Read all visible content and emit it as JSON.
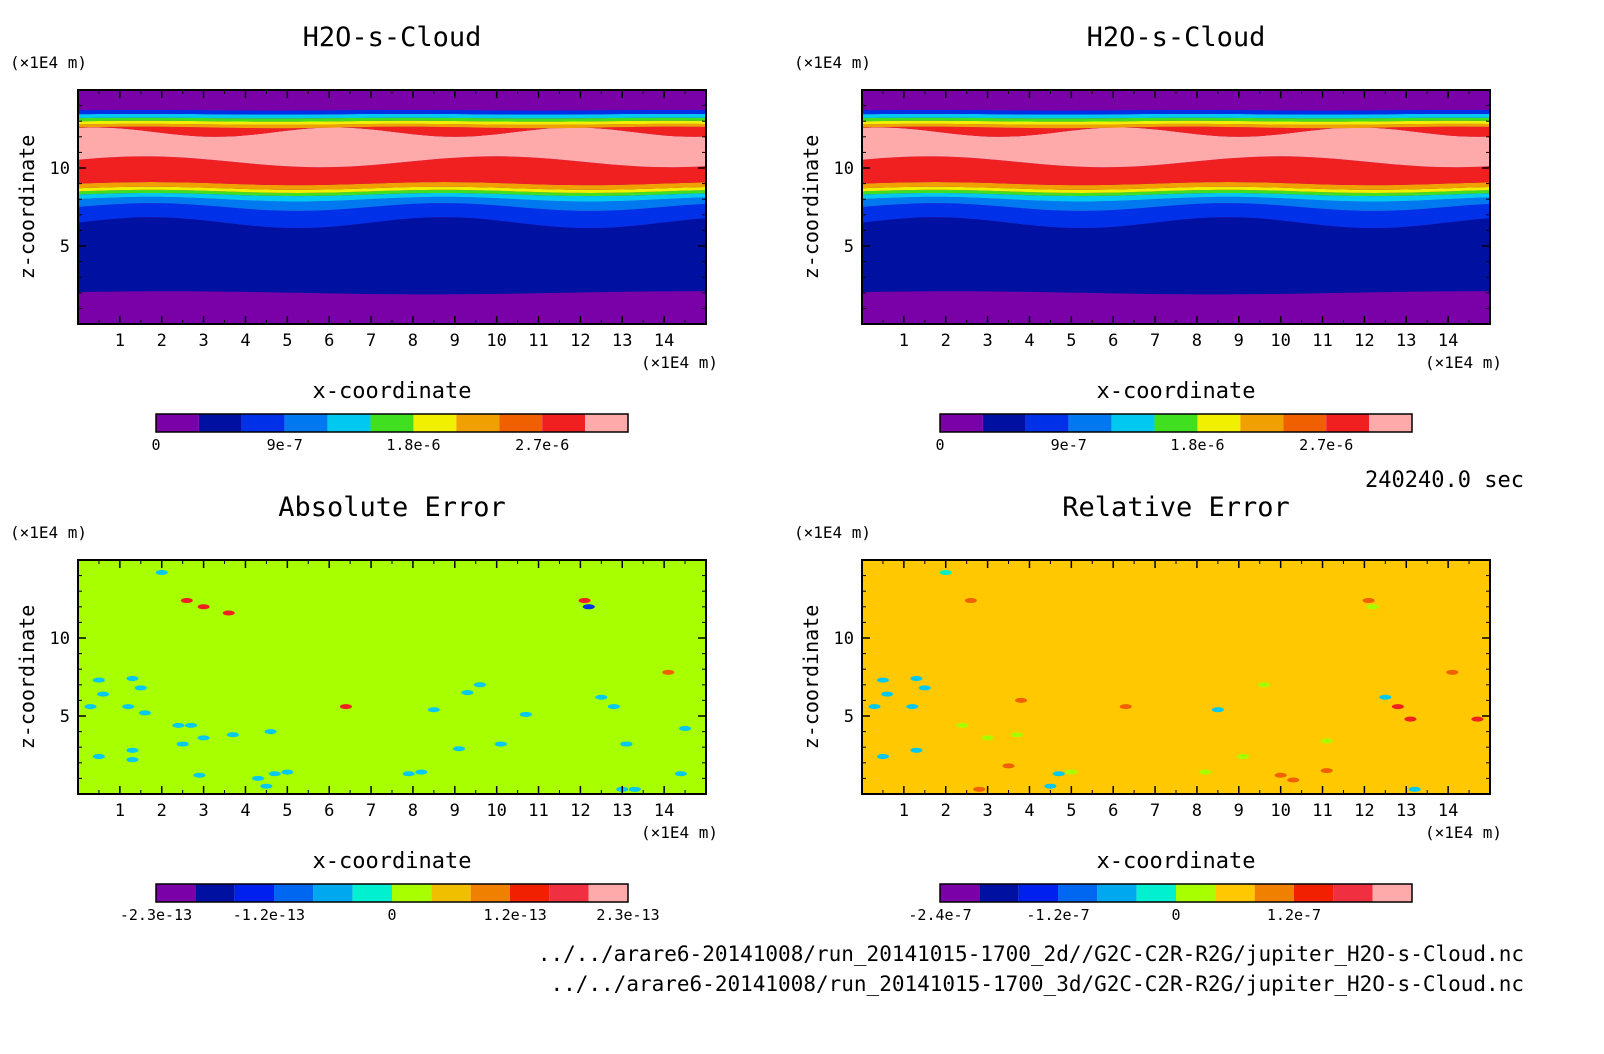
{
  "time_label": "240240.0 sec",
  "footer": {
    "line1": "../../arare6-20141008/run_20141015-1700_2d//G2C-C2R-R2G/jupiter_H2O-s-Cloud.nc",
    "line2": "../../arare6-20141008/run_20141015-1700_3d/G2C-C2R-R2G/jupiter_H2O-s-Cloud.nc"
  },
  "palette": [
    "#7a00a8",
    "#0010a0",
    "#0030e8",
    "#0078f0",
    "#00c8f0",
    "#00f0c8",
    "#40e020",
    "#f0f000",
    "#f0a000",
    "#f06000",
    "#f02020",
    "#ffaaaa"
  ],
  "chart_data": [
    {
      "type": "heatmap",
      "title": "H2O-s-Cloud",
      "xlabel": "x-coordinate",
      "ylabel": "z-coordinate",
      "x_unit": "(×1E4 m)",
      "y_unit": "(×1E4 m)",
      "xlim": [
        0,
        15
      ],
      "ylim": [
        0,
        15
      ],
      "xticks": [
        "1",
        "2",
        "3",
        "4",
        "5",
        "6",
        "7",
        "8",
        "9",
        "10",
        "11",
        "12",
        "13",
        "14"
      ],
      "yticks": [
        "5",
        "10"
      ],
      "colorbar": {
        "min": 0,
        "max": 3.3e-06,
        "labels": [
          "0",
          "9e-7",
          "1.8e-6",
          "2.7e-6"
        ],
        "colors": [
          "#7a00a8",
          "#0010a0",
          "#0030e8",
          "#0078f0",
          "#00c8f0",
          "#40e020",
          "#f0f000",
          "#f0a000",
          "#f06000",
          "#f02020",
          "#ffaaaa"
        ]
      },
      "field": "cloud"
    },
    {
      "type": "heatmap",
      "title": "H2O-s-Cloud",
      "xlabel": "x-coordinate",
      "ylabel": "z-coordinate",
      "x_unit": "(×1E4 m)",
      "y_unit": "(×1E4 m)",
      "xlim": [
        0,
        15
      ],
      "ylim": [
        0,
        15
      ],
      "xticks": [
        "1",
        "2",
        "3",
        "4",
        "5",
        "6",
        "7",
        "8",
        "9",
        "10",
        "11",
        "12",
        "13",
        "14"
      ],
      "yticks": [
        "5",
        "10"
      ],
      "colorbar": {
        "min": 0,
        "max": 3.3e-06,
        "labels": [
          "0",
          "9e-7",
          "1.8e-6",
          "2.7e-6"
        ],
        "colors": [
          "#7a00a8",
          "#0010a0",
          "#0030e8",
          "#0078f0",
          "#00c8f0",
          "#40e020",
          "#f0f000",
          "#f0a000",
          "#f06000",
          "#f02020",
          "#ffaaaa"
        ]
      },
      "field": "cloud"
    },
    {
      "type": "heatmap",
      "title": "Absolute Error",
      "xlabel": "x-coordinate",
      "ylabel": "z-coordinate",
      "x_unit": "(×1E4 m)",
      "y_unit": "(×1E4 m)",
      "xlim": [
        0,
        15
      ],
      "ylim": [
        0,
        15
      ],
      "xticks": [
        "1",
        "2",
        "3",
        "4",
        "5",
        "6",
        "7",
        "8",
        "9",
        "10",
        "11",
        "12",
        "13",
        "14"
      ],
      "yticks": [
        "5",
        "10"
      ],
      "background": "#a8ff00",
      "colorbar": {
        "min": -2.3e-13,
        "max": 2.3e-13,
        "labels": [
          "-2.3e-13",
          "-1.2e-13",
          "0",
          "1.2e-13",
          "2.3e-13"
        ],
        "colors": [
          "#7a00a8",
          "#0010a0",
          "#0020f0",
          "#0068f0",
          "#00a8f0",
          "#00f0d0",
          "#a8ff00",
          "#f0c000",
          "#f08000",
          "#f02000",
          "#f03040",
          "#ffaaaa"
        ]
      },
      "field": "abs_error",
      "speckles": [
        {
          "x": 2.0,
          "z": 14.2,
          "c": "#00c8f0"
        },
        {
          "x": 2.6,
          "z": 12.4,
          "c": "#f02020"
        },
        {
          "x": 3.0,
          "z": 12.0,
          "c": "#f02020"
        },
        {
          "x": 3.6,
          "z": 11.6,
          "c": "#f02020"
        },
        {
          "x": 12.1,
          "z": 12.4,
          "c": "#f02020"
        },
        {
          "x": 12.2,
          "z": 12.0,
          "c": "#0030e8"
        },
        {
          "x": 0.5,
          "z": 7.3,
          "c": "#00c8f0"
        },
        {
          "x": 0.6,
          "z": 6.4,
          "c": "#00c8f0"
        },
        {
          "x": 1.3,
          "z": 7.4,
          "c": "#00c8f0"
        },
        {
          "x": 1.5,
          "z": 6.8,
          "c": "#00c8f0"
        },
        {
          "x": 0.3,
          "z": 5.6,
          "c": "#00c8f0"
        },
        {
          "x": 1.2,
          "z": 5.6,
          "c": "#00c8f0"
        },
        {
          "x": 1.6,
          "z": 5.2,
          "c": "#00c8f0"
        },
        {
          "x": 2.4,
          "z": 4.4,
          "c": "#00c8f0"
        },
        {
          "x": 2.7,
          "z": 4.4,
          "c": "#00c8f0"
        },
        {
          "x": 3.0,
          "z": 3.6,
          "c": "#00c8f0"
        },
        {
          "x": 3.7,
          "z": 3.8,
          "c": "#00c8f0"
        },
        {
          "x": 4.6,
          "z": 4.0,
          "c": "#00c8f0"
        },
        {
          "x": 2.5,
          "z": 3.2,
          "c": "#00c8f0"
        },
        {
          "x": 1.3,
          "z": 2.8,
          "c": "#00c8f0"
        },
        {
          "x": 0.5,
          "z": 2.4,
          "c": "#00c8f0"
        },
        {
          "x": 1.3,
          "z": 2.2,
          "c": "#00c8f0"
        },
        {
          "x": 2.9,
          "z": 1.2,
          "c": "#00c8f0"
        },
        {
          "x": 4.3,
          "z": 1.0,
          "c": "#00c8f0"
        },
        {
          "x": 4.7,
          "z": 1.3,
          "c": "#00c8f0"
        },
        {
          "x": 5.0,
          "z": 1.4,
          "c": "#00c8f0"
        },
        {
          "x": 4.5,
          "z": 0.5,
          "c": "#00c8f0"
        },
        {
          "x": 7.9,
          "z": 1.3,
          "c": "#00c8f0"
        },
        {
          "x": 8.2,
          "z": 1.4,
          "c": "#00c8f0"
        },
        {
          "x": 9.1,
          "z": 2.9,
          "c": "#00c8f0"
        },
        {
          "x": 8.5,
          "z": 5.4,
          "c": "#00c8f0"
        },
        {
          "x": 9.3,
          "z": 6.5,
          "c": "#00c8f0"
        },
        {
          "x": 9.6,
          "z": 7.0,
          "c": "#00c8f0"
        },
        {
          "x": 10.1,
          "z": 3.2,
          "c": "#00c8f0"
        },
        {
          "x": 10.7,
          "z": 5.1,
          "c": "#00c8f0"
        },
        {
          "x": 12.5,
          "z": 6.2,
          "c": "#00c8f0"
        },
        {
          "x": 12.8,
          "z": 5.6,
          "c": "#00c8f0"
        },
        {
          "x": 13.1,
          "z": 3.2,
          "c": "#00c8f0"
        },
        {
          "x": 14.5,
          "z": 4.2,
          "c": "#00c8f0"
        },
        {
          "x": 14.4,
          "z": 1.3,
          "c": "#00c8f0"
        },
        {
          "x": 13.0,
          "z": 0.3,
          "c": "#00c8f0"
        },
        {
          "x": 13.3,
          "z": 0.3,
          "c": "#00c8f0"
        },
        {
          "x": 14.1,
          "z": 7.8,
          "c": "#f06000"
        },
        {
          "x": 6.4,
          "z": 5.6,
          "c": "#f02020"
        }
      ]
    },
    {
      "type": "heatmap",
      "title": "Relative Error",
      "xlabel": "x-coordinate",
      "ylabel": "z-coordinate",
      "x_unit": "(×1E4 m)",
      "y_unit": "(×1E4 m)",
      "xlim": [
        0,
        15
      ],
      "ylim": [
        0,
        15
      ],
      "xticks": [
        "1",
        "2",
        "3",
        "4",
        "5",
        "6",
        "7",
        "8",
        "9",
        "10",
        "11",
        "12",
        "13",
        "14"
      ],
      "yticks": [
        "5",
        "10"
      ],
      "background": "#ffc800",
      "colorbar": {
        "min": -2.4e-07,
        "max": 2.4e-07,
        "labels": [
          "-2.4e-7",
          "-1.2e-7",
          "0",
          "1.2e-7"
        ],
        "colors": [
          "#7a00a8",
          "#0010a0",
          "#0020f0",
          "#0068f0",
          "#00a8f0",
          "#00f0d0",
          "#a8ff00",
          "#ffc800",
          "#f08000",
          "#f02000",
          "#f03040",
          "#ffaaaa"
        ]
      },
      "field": "rel_error",
      "speckles": [
        {
          "x": 2.0,
          "z": 14.2,
          "c": "#00f0c8"
        },
        {
          "x": 2.6,
          "z": 12.4,
          "c": "#f06000"
        },
        {
          "x": 12.1,
          "z": 12.4,
          "c": "#f06000"
        },
        {
          "x": 12.2,
          "z": 12.0,
          "c": "#a8ff00"
        },
        {
          "x": 0.5,
          "z": 7.3,
          "c": "#00c8f0"
        },
        {
          "x": 1.3,
          "z": 7.4,
          "c": "#00c8f0"
        },
        {
          "x": 1.5,
          "z": 6.8,
          "c": "#00c8f0"
        },
        {
          "x": 0.6,
          "z": 6.4,
          "c": "#00c8f0"
        },
        {
          "x": 0.3,
          "z": 5.6,
          "c": "#00c8f0"
        },
        {
          "x": 1.2,
          "z": 5.6,
          "c": "#00c8f0"
        },
        {
          "x": 2.4,
          "z": 4.4,
          "c": "#a8ff00"
        },
        {
          "x": 3.0,
          "z": 3.6,
          "c": "#a8ff00"
        },
        {
          "x": 3.7,
          "z": 3.8,
          "c": "#a8ff00"
        },
        {
          "x": 1.3,
          "z": 2.8,
          "c": "#00c8f0"
        },
        {
          "x": 0.5,
          "z": 2.4,
          "c": "#00c8f0"
        },
        {
          "x": 4.5,
          "z": 0.5,
          "c": "#00c8f0"
        },
        {
          "x": 4.7,
          "z": 1.3,
          "c": "#00c8f0"
        },
        {
          "x": 5.0,
          "z": 1.4,
          "c": "#a8ff00"
        },
        {
          "x": 8.2,
          "z": 1.4,
          "c": "#a8ff00"
        },
        {
          "x": 8.5,
          "z": 5.4,
          "c": "#00c8f0"
        },
        {
          "x": 9.6,
          "z": 7.0,
          "c": "#a8ff00"
        },
        {
          "x": 12.5,
          "z": 6.2,
          "c": "#00c8f0"
        },
        {
          "x": 12.8,
          "z": 5.6,
          "c": "#f02020"
        },
        {
          "x": 13.1,
          "z": 4.8,
          "c": "#f02020"
        },
        {
          "x": 14.7,
          "z": 4.8,
          "c": "#f02020"
        },
        {
          "x": 14.1,
          "z": 7.8,
          "c": "#f06000"
        },
        {
          "x": 13.2,
          "z": 0.3,
          "c": "#00c8f0"
        },
        {
          "x": 10.0,
          "z": 1.2,
          "c": "#f06000"
        },
        {
          "x": 10.3,
          "z": 0.9,
          "c": "#f06000"
        },
        {
          "x": 11.1,
          "z": 1.5,
          "c": "#f06000"
        },
        {
          "x": 2.8,
          "z": 0.3,
          "c": "#f06000"
        },
        {
          "x": 3.5,
          "z": 1.8,
          "c": "#f06000"
        },
        {
          "x": 6.3,
          "z": 5.6,
          "c": "#f06000"
        },
        {
          "x": 3.8,
          "z": 6.0,
          "c": "#f06000"
        },
        {
          "x": 11.1,
          "z": 3.4,
          "c": "#a8ff00"
        },
        {
          "x": 9.1,
          "z": 2.4,
          "c": "#a8ff00"
        }
      ]
    }
  ]
}
